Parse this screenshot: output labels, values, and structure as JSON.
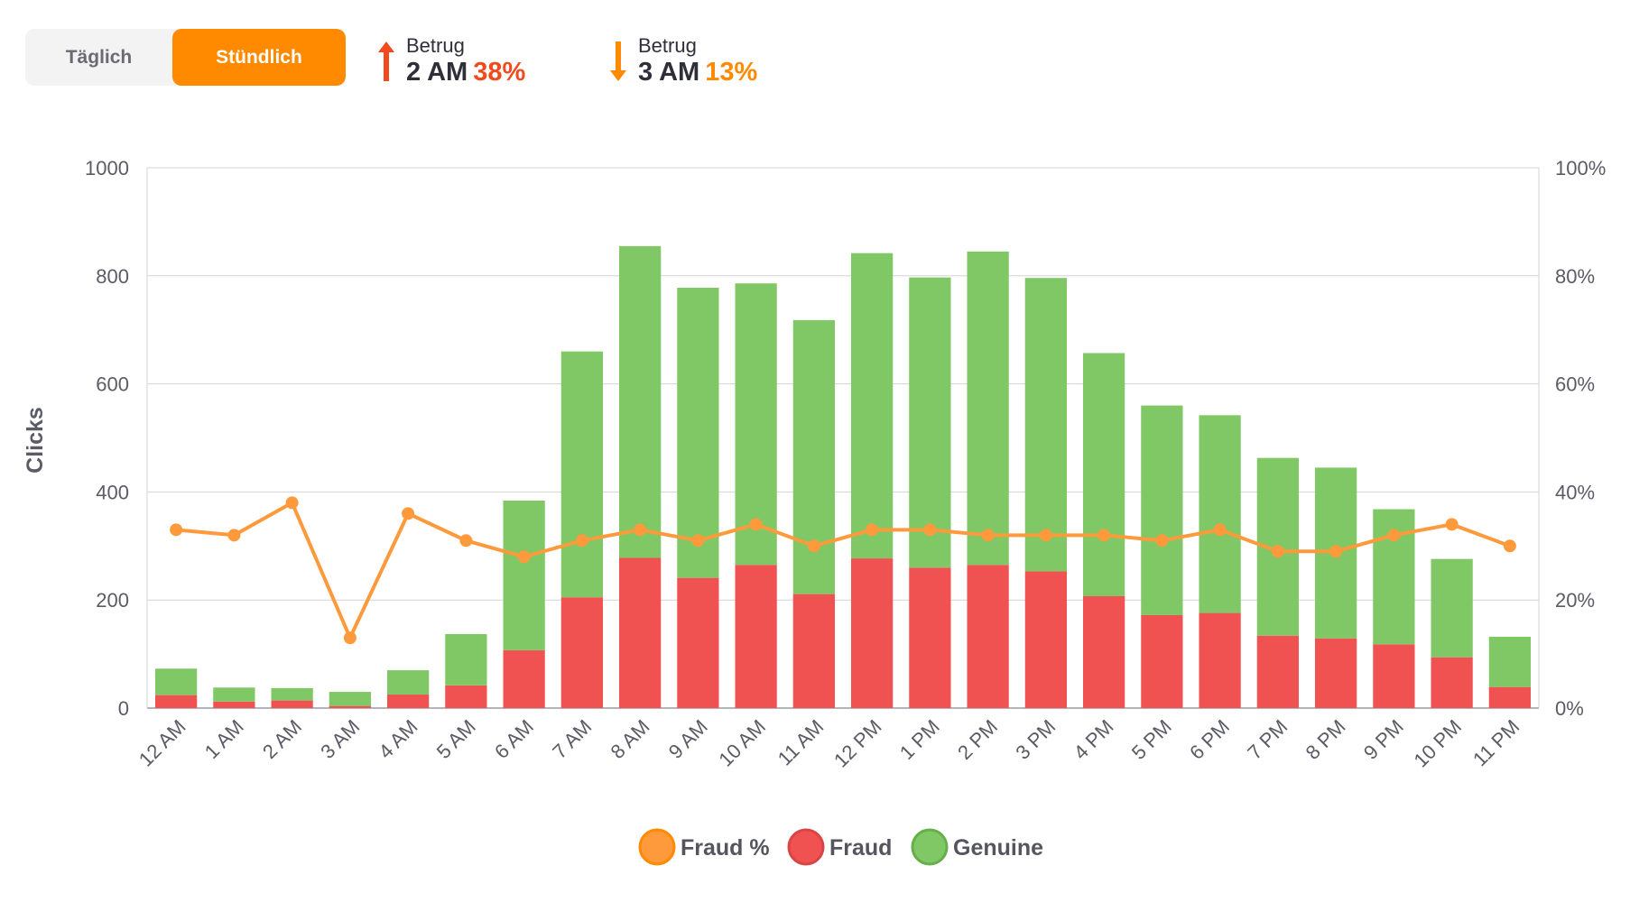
{
  "toggle": {
    "daily_label": "Täglich",
    "hourly_label": "Stündlich",
    "selected": "hourly"
  },
  "stats": {
    "up": {
      "label": "Betrug",
      "time": "2 AM",
      "percent": "38%"
    },
    "down": {
      "label": "Betrug",
      "time": "3 AM",
      "percent": "13%"
    }
  },
  "colors": {
    "fraud_pct": "#ff9a3c",
    "fraud": "#f05252",
    "genuine": "#80c865",
    "accent": "#ff8a00",
    "up": "#f04a1e"
  },
  "chart_data": {
    "type": "bar",
    "stacked": true,
    "title": "",
    "xlabel": "",
    "ylabel": "Clicks",
    "ylim": [
      0,
      1000
    ],
    "y_ticks": [
      0,
      200,
      400,
      600,
      800,
      1000
    ],
    "y2lim": [
      0,
      100
    ],
    "y2_ticks": [
      "0%",
      "20%",
      "40%",
      "60%",
      "80%",
      "100%"
    ],
    "grid": true,
    "legend_position": "bottom-center",
    "categories": [
      "12 AM",
      "1 AM",
      "2 AM",
      "3 AM",
      "4 AM",
      "5 AM",
      "6 AM",
      "7 AM",
      "8 AM",
      "9 AM",
      "10 AM",
      "11 AM",
      "12 PM",
      "1 PM",
      "2 PM",
      "3 PM",
      "4 PM",
      "5 PM",
      "6 PM",
      "7 PM",
      "8 PM",
      "9 PM",
      "10 PM",
      "11 PM"
    ],
    "series": [
      {
        "name": "Fraud",
        "type": "bar",
        "values": [
          24,
          12,
          14,
          4,
          25,
          42,
          107,
          205,
          278,
          241,
          265,
          211,
          277,
          260,
          265,
          253,
          207,
          172,
          176,
          134,
          129,
          118,
          94,
          39
        ]
      },
      {
        "name": "Genuine",
        "type": "bar",
        "values": [
          49,
          26,
          23,
          26,
          45,
          95,
          277,
          455,
          577,
          537,
          521,
          507,
          565,
          537,
          580,
          543,
          450,
          388,
          366,
          329,
          316,
          250,
          182,
          93
        ]
      },
      {
        "name": "Fraud %",
        "type": "line",
        "axis": "right",
        "values": [
          33,
          32,
          38,
          13,
          36,
          31,
          28,
          31,
          33,
          31,
          34,
          30,
          33,
          33,
          32,
          32,
          32,
          31,
          33,
          29,
          29,
          32,
          34,
          30
        ]
      }
    ]
  }
}
